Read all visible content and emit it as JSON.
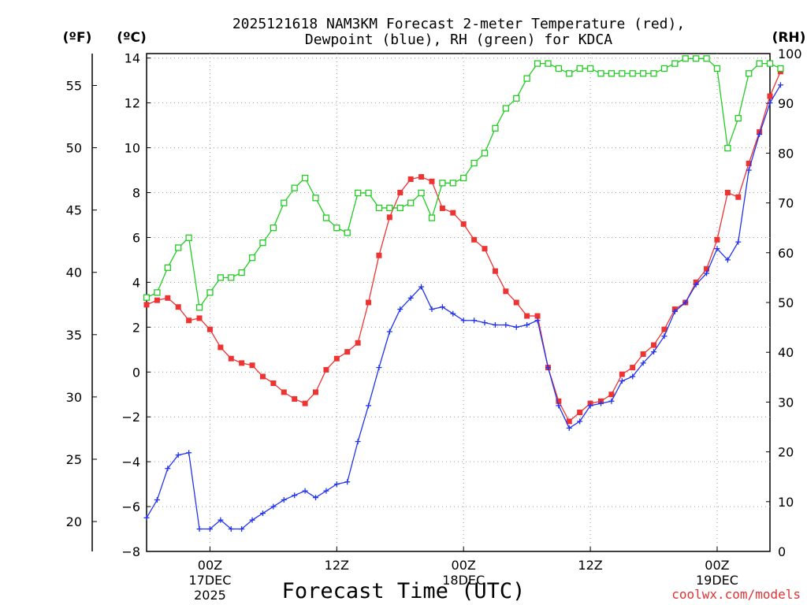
{
  "chart_data": {
    "type": "line",
    "title_line1": "2025121618 NAM3KM Forecast 2-meter Temperature (red),",
    "title_line2": "Dewpoint (blue), RH (green) for KDCA",
    "xlabel": "Forecast Time (UTC)",
    "watermark": "coolwx.com/models",
    "axis_unit_labels": {
      "fahrenheit": "(ºF)",
      "celsius": "(ºC)",
      "rh": "(RH)"
    },
    "x_range_hours": [
      0,
      59
    ],
    "celsius_range": [
      -8,
      14.2
    ],
    "rh_range": [
      0,
      100
    ],
    "celsius_ticks": [
      "-8",
      "-6",
      "-4",
      "-2",
      "0",
      "2",
      "4",
      "6",
      "8",
      "10",
      "12",
      "14"
    ],
    "fahrenheit_ticks": [
      "20",
      "25",
      "30",
      "35",
      "40",
      "45",
      "50",
      "55"
    ],
    "rh_ticks": [
      "0",
      "10",
      "20",
      "30",
      "40",
      "50",
      "60",
      "70",
      "80",
      "90",
      "100"
    ],
    "x_ticks": [
      {
        "hour": 6,
        "line1": "00Z",
        "line2": "17DEC",
        "line3": "2025"
      },
      {
        "hour": 18,
        "line1": "12Z",
        "line2": "",
        "line3": ""
      },
      {
        "hour": 30,
        "line1": "00Z",
        "line2": "18DEC",
        "line3": ""
      },
      {
        "hour": 42,
        "line1": "12Z",
        "line2": "",
        "line3": ""
      },
      {
        "hour": 54,
        "line1": "00Z",
        "line2": "19DEC",
        "line3": ""
      }
    ],
    "series": [
      {
        "name": "2-meter Temperature",
        "unit": "°C",
        "color": "#ee3333",
        "marker": "filled-square",
        "values": [
          3.0,
          3.2,
          3.3,
          2.9,
          2.3,
          2.4,
          1.9,
          1.1,
          0.6,
          0.4,
          0.3,
          -0.2,
          -0.5,
          -0.9,
          -1.2,
          -1.4,
          -0.9,
          0.1,
          0.6,
          0.9,
          1.3,
          3.1,
          5.2,
          6.9,
          8.0,
          8.6,
          8.7,
          8.5,
          7.3,
          7.1,
          6.6,
          5.9,
          5.5,
          4.5,
          3.6,
          3.1,
          2.5,
          2.5,
          0.2,
          -1.3,
          -2.2,
          -1.8,
          -1.4,
          -1.3,
          -1.0,
          -0.1,
          0.2,
          0.8,
          1.2,
          1.9,
          2.8,
          3.1,
          4.0,
          4.6,
          5.9,
          8.0,
          7.8,
          9.3,
          10.7,
          12.3,
          13.4
        ]
      },
      {
        "name": "Dewpoint",
        "unit": "°C",
        "color": "#2233ee",
        "marker": "plus",
        "values": [
          -6.5,
          -5.7,
          -4.3,
          -3.7,
          -3.6,
          -7.0,
          -7.0,
          -6.6,
          -7.0,
          -7.0,
          -6.6,
          -6.3,
          -6.0,
          -5.7,
          -5.5,
          -5.3,
          -5.6,
          -5.3,
          -5.0,
          -4.9,
          -3.1,
          -1.5,
          0.2,
          1.8,
          2.8,
          3.3,
          3.8,
          2.8,
          2.9,
          2.6,
          2.3,
          2.3,
          2.2,
          2.1,
          2.1,
          2.0,
          2.1,
          2.3,
          0.2,
          -1.5,
          -2.5,
          -2.2,
          -1.5,
          -1.4,
          -1.3,
          -0.4,
          -0.2,
          0.4,
          0.9,
          1.6,
          2.7,
          3.1,
          3.9,
          4.4,
          5.5,
          5.0,
          5.8,
          9.0,
          10.6,
          12.0,
          12.8
        ]
      },
      {
        "name": "RH",
        "unit": "%",
        "color": "#22cc22",
        "marker": "open-square",
        "values": [
          51,
          52,
          57,
          61,
          63,
          49,
          52,
          55,
          55,
          56,
          59,
          62,
          65,
          70,
          73,
          75,
          71,
          67,
          65,
          64,
          72,
          72,
          69,
          69,
          69,
          70,
          72,
          67,
          74,
          74,
          75,
          78,
          80,
          85,
          89,
          91,
          95,
          98,
          98,
          97,
          96,
          97,
          97,
          96,
          96,
          96,
          96,
          96,
          96,
          97,
          98,
          99,
          99,
          99,
          97,
          81,
          87,
          96,
          98,
          98,
          97
        ]
      }
    ]
  }
}
